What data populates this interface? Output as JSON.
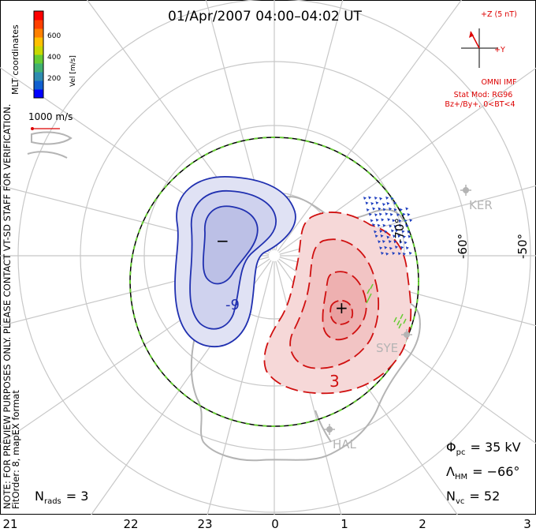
{
  "title": "01/Apr/2007 04:00–04:02 UT",
  "colorbar": {
    "label": "Vel [m/s]",
    "ticks": [
      "600",
      "400",
      "200"
    ],
    "colors": [
      "#0000ff",
      "#1060d0",
      "#2f8cb0",
      "#40b070",
      "#66cc33",
      "#c8d800",
      "#ffc000",
      "#ff8000",
      "#ff4000",
      "#ff0000"
    ]
  },
  "coord_label": "MLT coordinates",
  "vector_scale": "1000 m/s",
  "side_note": "NOTE: FOR PREVIEW PURPOSES ONLY. PLEASE CONTACT VT-SD STAFF FOR VERIFICATION.",
  "fit_info": "FitOrder: 8, mapEX format",
  "imf": {
    "z_label": "+Z (5 nT)",
    "y_label": "+Y",
    "source": "OMNI IMF",
    "model_line1": "Stat Mod: RG96",
    "model_line2": "Bz+/By+, 0<BT<4"
  },
  "stations": [
    "KER",
    "SYE",
    "HAL"
  ],
  "lat_labels": [
    "-50°",
    "-60°",
    "-70°"
  ],
  "contour_labels": [
    "-9",
    "3"
  ],
  "extrema": {
    "min": "−",
    "max": "+"
  },
  "stats": {
    "phi_label": "Φ",
    "phi_sub": "pc",
    "phi_value": "= 35 kV",
    "lambda_label": "Λ",
    "lambda_sub": "HM",
    "lambda_value": "= −66°",
    "nvc_label": "N",
    "nvc_sub": "vc",
    "nvc_value": "= 52",
    "nrads_label": "N",
    "nrads_sub": "rads",
    "nrads_value": "= 3"
  },
  "mlt_ticks": [
    "21",
    "22",
    "23",
    "0",
    "1",
    "2",
    "3"
  ],
  "colors": {
    "negative_cell": "#2030b0",
    "positive_cell": "#d01010",
    "grid": "#c8c8c8",
    "coast": "#b4b4b4",
    "boundary_green": "#66cc33",
    "annotation_red": "#dd0000"
  }
}
